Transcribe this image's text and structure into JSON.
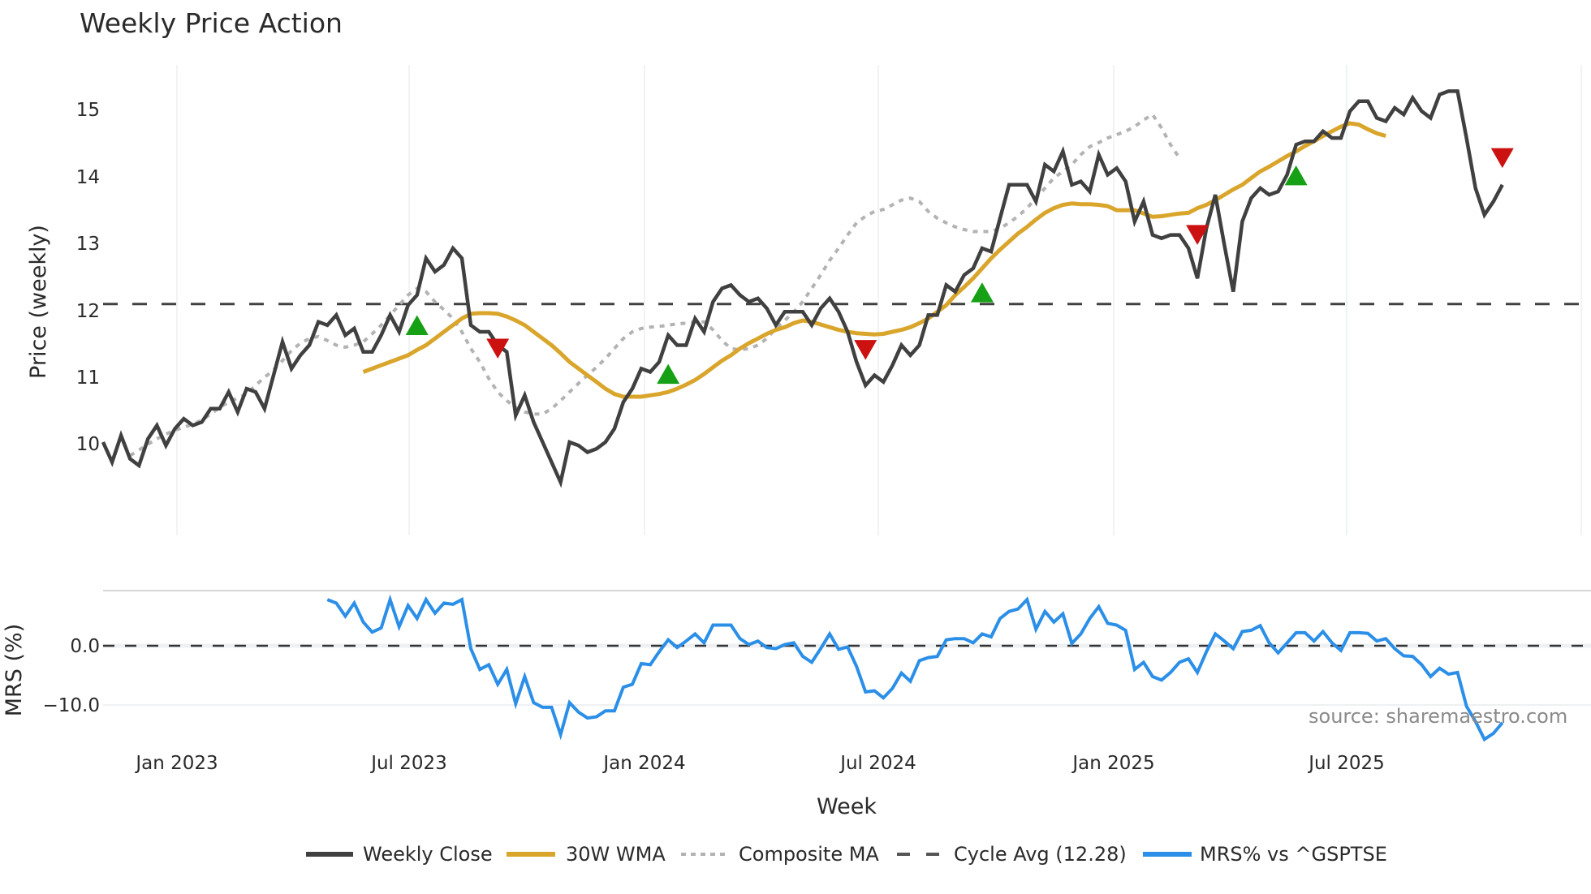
{
  "chart_data": {
    "type": "line",
    "title": "Weekly Price Action",
    "xlabel": "Week",
    "panels": [
      {
        "name": "price",
        "ylabel": "Price (weekly)",
        "ylim": [
          9.2,
          15.6
        ],
        "yticks": [
          10,
          11,
          12,
          13,
          14,
          15
        ],
        "series": [
          {
            "name": "Weekly Close",
            "color": "#404040",
            "style": "solid",
            "values": [
              10.0,
              9.7,
              10.1,
              9.75,
              9.65,
              10.05,
              10.25,
              9.95,
              10.2,
              10.35,
              10.25,
              10.3,
              10.5,
              10.5,
              10.75,
              10.45,
              10.8,
              10.75,
              10.5,
              11.0,
              11.5,
              11.1,
              11.3,
              11.45,
              11.8,
              11.75,
              11.9,
              11.6,
              11.7,
              11.35,
              11.35,
              11.6,
              11.9,
              11.65,
              12.05,
              12.2,
              12.75,
              12.55,
              12.65,
              12.9,
              12.75,
              11.75,
              11.65,
              11.65,
              11.45,
              11.35,
              10.4,
              10.7,
              10.3,
              10.0,
              9.7,
              9.4,
              10.0,
              9.95,
              9.85,
              9.9,
              10.0,
              10.2,
              10.6,
              10.8,
              11.1,
              11.05,
              11.2,
              11.6,
              11.45,
              11.45,
              11.85,
              11.65,
              12.1,
              12.3,
              12.35,
              12.2,
              12.1,
              12.15,
              12.0,
              11.75,
              11.95,
              11.95,
              11.95,
              11.75,
              12.0,
              12.15,
              11.95,
              11.65,
              11.2,
              10.85,
              11.0,
              10.9,
              11.15,
              11.45,
              11.3,
              11.45,
              11.9,
              11.9,
              12.35,
              12.25,
              12.5,
              12.6,
              12.9,
              12.85,
              13.35,
              13.85,
              13.85,
              13.85,
              13.6,
              14.15,
              14.05,
              14.35,
              13.85,
              13.9,
              13.75,
              14.3,
              14.0,
              14.1,
              13.9,
              13.3,
              13.6,
              13.1,
              13.05,
              13.1,
              13.1,
              12.9,
              12.45,
              13.2,
              13.7,
              12.95,
              12.25,
              13.3,
              13.65,
              13.8,
              13.7,
              13.75,
              14.0,
              14.45,
              14.5,
              14.5,
              14.65,
              14.55,
              14.55,
              14.95,
              15.1,
              15.1,
              14.85,
              14.8,
              15.0,
              14.9,
              15.15,
              14.95,
              14.85,
              15.2,
              15.25,
              15.25,
              14.55,
              13.8,
              13.4,
              13.6,
              13.85
            ]
          },
          {
            "name": "30W WMA",
            "color": "#d9a52b",
            "style": "solid",
            "start_index": 29,
            "values": [
              11.05,
              11.1,
              11.15,
              11.2,
              11.25,
              11.3,
              11.38,
              11.45,
              11.55,
              11.65,
              11.75,
              11.85,
              11.92,
              11.93,
              11.93,
              11.92,
              11.88,
              11.82,
              11.75,
              11.65,
              11.55,
              11.45,
              11.33,
              11.2,
              11.1,
              11.0,
              10.9,
              10.8,
              10.72,
              10.68,
              10.68,
              10.68,
              10.7,
              10.72,
              10.75,
              10.8,
              10.86,
              10.93,
              11.02,
              11.12,
              11.22,
              11.3,
              11.4,
              11.48,
              11.55,
              11.62,
              11.68,
              11.72,
              11.78,
              11.82,
              11.8,
              11.76,
              11.72,
              11.68,
              11.65,
              11.63,
              11.62,
              11.61,
              11.62,
              11.65,
              11.68,
              11.72,
              11.78,
              11.85,
              11.95,
              12.05,
              12.2,
              12.32,
              12.45,
              12.6,
              12.75,
              12.88,
              13.0,
              13.12,
              13.22,
              13.33,
              13.43,
              13.5,
              13.55,
              13.57,
              13.56,
              13.56,
              13.55,
              13.53,
              13.47,
              13.47,
              13.47,
              13.42,
              13.37,
              13.38,
              13.4,
              13.42,
              13.43,
              13.5,
              13.55,
              13.62,
              13.7,
              13.78,
              13.85,
              13.95,
              14.05,
              14.12,
              14.2,
              14.28,
              14.35,
              14.43,
              14.5,
              14.58,
              14.65,
              14.72,
              14.77,
              14.75,
              14.68,
              14.62,
              14.58
            ]
          },
          {
            "name": "Composite MA",
            "color": "#b3b3b3",
            "style": "dotted",
            "start_index": 3,
            "values": [
              9.8,
              9.88,
              9.97,
              10.05,
              10.12,
              10.18,
              10.22,
              10.27,
              10.33,
              10.42,
              10.52,
              10.6,
              10.66,
              10.72,
              10.85,
              10.97,
              11.08,
              11.22,
              11.37,
              11.48,
              11.55,
              11.58,
              11.52,
              11.45,
              11.42,
              11.45,
              11.5,
              11.62,
              11.75,
              11.9,
              12.05,
              12.2,
              12.3,
              12.25,
              12.1,
              11.98,
              11.85,
              11.65,
              11.4,
              11.2,
              10.95,
              10.75,
              10.62,
              10.52,
              10.45,
              10.42,
              10.42,
              10.5,
              10.62,
              10.75,
              10.88,
              11.0,
              11.12,
              11.25,
              11.4,
              11.55,
              11.65,
              11.7,
              11.72,
              11.73,
              11.75,
              11.77,
              11.78,
              11.8,
              11.8,
              11.68,
              11.52,
              11.4,
              11.38,
              11.4,
              11.45,
              11.55,
              11.7,
              11.82,
              11.95,
              12.1,
              12.3,
              12.5,
              12.72,
              12.9,
              13.1,
              13.28,
              13.38,
              13.45,
              13.48,
              13.55,
              13.62,
              13.65,
              13.6,
              13.45,
              13.35,
              13.28,
              13.22,
              13.18,
              13.15,
              13.15,
              13.15,
              13.2,
              13.28,
              13.38,
              13.5,
              13.65,
              13.8,
              13.95,
              14.05,
              14.15,
              14.3,
              14.42,
              14.48,
              14.55,
              14.6,
              14.65,
              14.72,
              14.82,
              14.9,
              14.7,
              14.45,
              14.25
            ]
          },
          {
            "name": "Cycle Avg (12.28)",
            "color": "#404040",
            "style": "dashed",
            "value": 12.28
          }
        ],
        "markers": [
          {
            "type": "buy",
            "shape": "triangle-up",
            "color": "#16a016",
            "week_index": 35,
            "price": 11.73
          },
          {
            "type": "sell",
            "shape": "triangle-down",
            "color": "#cc1111",
            "week_index": 44,
            "price": 11.42
          },
          {
            "type": "buy",
            "shape": "triangle-up",
            "color": "#16a016",
            "week_index": 63,
            "price": 11.0
          },
          {
            "type": "sell",
            "shape": "triangle-down",
            "color": "#cc1111",
            "week_index": 85,
            "price": 11.4
          },
          {
            "type": "buy",
            "shape": "triangle-up",
            "color": "#16a016",
            "week_index": 98,
            "price": 12.22
          },
          {
            "type": "sell",
            "shape": "triangle-down",
            "color": "#cc1111",
            "week_index": 122,
            "price": 13.12
          },
          {
            "type": "buy",
            "shape": "triangle-up",
            "color": "#16a016",
            "week_index": 133,
            "price": 13.97
          },
          {
            "type": "sell",
            "shape": "triangle-down",
            "color": "#cc1111",
            "week_index": 156,
            "price": 14.27
          }
        ]
      },
      {
        "name": "mrs",
        "ylabel": "MRS (%)",
        "ylim": [
          -17,
          9
        ],
        "yticks": [
          0.0,
          -10.0
        ],
        "ytick_labels": [
          "0.0",
          "−10.0"
        ],
        "series": [
          {
            "name": "MRS% vs ^GSPTSE",
            "color": "#2b8fe8",
            "style": "solid",
            "start_index": 25,
            "values": [
              7.8,
              7.2,
              5.0,
              7.2,
              4.0,
              2.3,
              3.0,
              7.8,
              3.2,
              6.8,
              4.6,
              7.8,
              5.5,
              7.2,
              7.0,
              7.8,
              -0.5,
              -4.0,
              -3.2,
              -6.5,
              -4.0,
              -9.8,
              -5.2,
              -9.6,
              -10.4,
              -10.4,
              -15.0,
              -9.6,
              -11.2,
              -12.2,
              -12.0,
              -11.0,
              -11.0,
              -7.0,
              -6.5,
              -3.0,
              -3.2,
              -1.0,
              1.0,
              -0.3,
              0.8,
              2.0,
              0.5,
              3.5,
              3.5,
              3.5,
              1.2,
              0.2,
              0.8,
              -0.3,
              -0.5,
              0.2,
              0.5,
              -1.8,
              -2.8,
              -0.5,
              2.0,
              -0.6,
              -0.2,
              -3.5,
              -7.8,
              -7.6,
              -8.8,
              -7.2,
              -4.6,
              -6.0,
              -2.5,
              -2.0,
              -1.8,
              1.0,
              1.2,
              1.2,
              0.5,
              2.0,
              1.5,
              4.6,
              5.8,
              6.2,
              7.8,
              2.8,
              5.8,
              4.0,
              5.4,
              0.4,
              2.0,
              4.6,
              6.6,
              3.8,
              3.5,
              2.6,
              -4.0,
              -2.8,
              -5.2,
              -5.8,
              -4.5,
              -2.8,
              -2.2,
              -4.5,
              -1.0,
              2.0,
              0.8,
              -0.5,
              2.4,
              2.6,
              3.4,
              0.5,
              -1.2,
              0.5,
              2.2,
              2.2,
              0.8,
              2.4,
              0.5,
              -0.8,
              2.2,
              2.2,
              2.1,
              0.8,
              1.2,
              -0.5,
              -1.7,
              -1.8,
              -3.2,
              -5.2,
              -3.8,
              -4.8,
              -4.5,
              -10.2,
              -12.8,
              -15.8,
              -14.8,
              -13.0
            ]
          },
          {
            "name": "zero line",
            "color": "#404040",
            "style": "dashed",
            "value": 0.0
          }
        ]
      }
    ],
    "x": {
      "start": "Dec 2022",
      "end": "Oct 2025",
      "frequency": "weekly",
      "tick_labels": [
        "Jan 2023",
        "Jul 2023",
        "Jan 2024",
        "Jul 2024",
        "Jan 2025",
        "Jul 2025"
      ]
    },
    "legend": {
      "position": "bottom",
      "entries": [
        "Weekly Close",
        "30W WMA",
        "Composite MA",
        "Cycle Avg (12.28)",
        "MRS% vs ^GSPTSE"
      ]
    },
    "annotations": [
      "source: sharemaestro.com"
    ],
    "grid": {
      "x": true,
      "y": false
    }
  },
  "labels": {
    "title": "Weekly Price Action",
    "price_ylabel": "Price (weekly)",
    "mrs_ylabel": "MRS (%)",
    "xlabel": "Week",
    "source": "source: sharemaestro.com",
    "price_ticks": [
      "15",
      "14",
      "13",
      "12",
      "11",
      "10"
    ],
    "mrs_ticks": [
      "0.0",
      "−10.0"
    ],
    "x_ticks": [
      "Jan 2023",
      "Jul 2023",
      "Jan 2024",
      "Jul 2024",
      "Jan 2025",
      "Jul 2025"
    ],
    "legend": [
      "Weekly Close",
      "30W WMA",
      "Composite MA",
      "Cycle Avg (12.28)",
      "MRS% vs ^GSPTSE"
    ]
  }
}
